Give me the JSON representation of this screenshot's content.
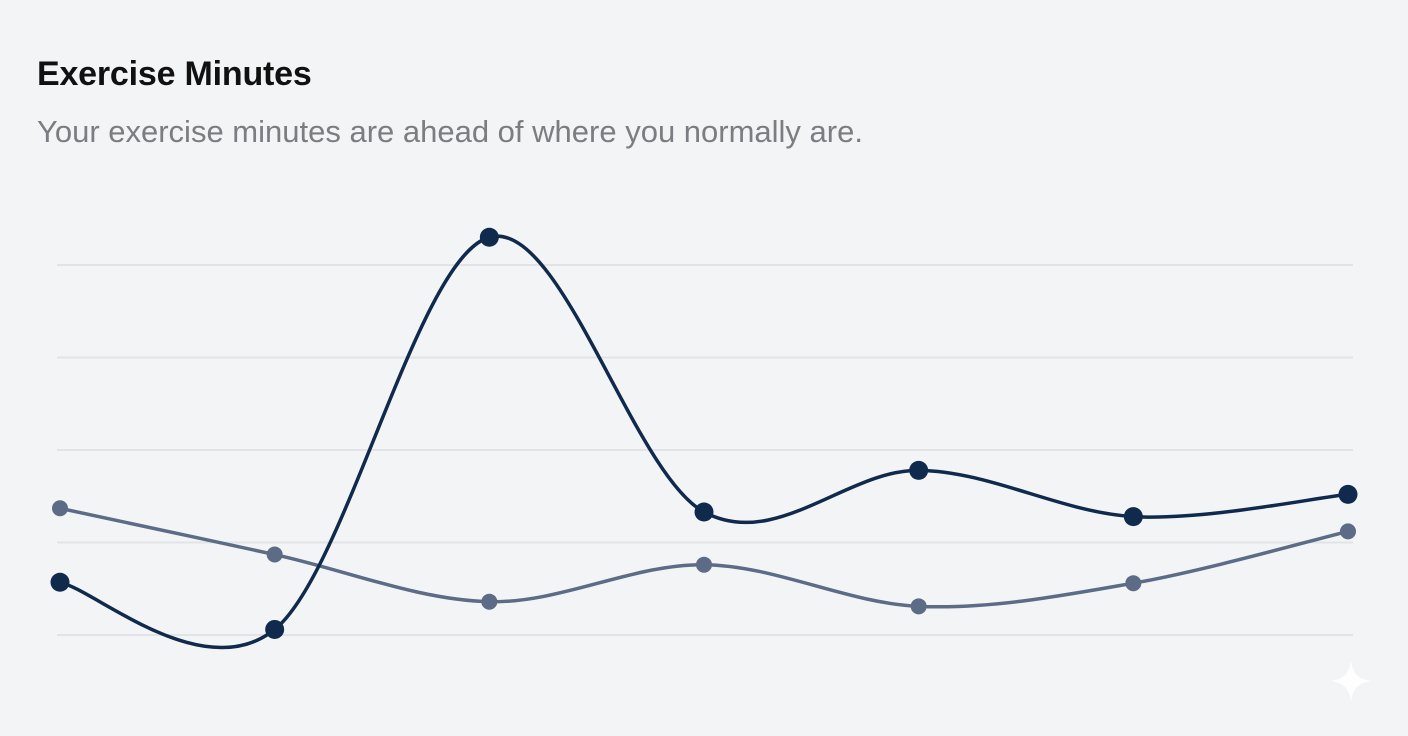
{
  "card": {
    "title": "Exercise Minutes",
    "subtitle": "Your exercise minutes are ahead of where you normally are."
  },
  "colors": {
    "background": "#f3f4f5",
    "current_series": "#0f2a4d",
    "typical_series": "#5c6b86",
    "gridline": "#e1e3e6"
  },
  "chart_data": {
    "type": "line",
    "title": "Exercise Minutes",
    "subtitle": "Your exercise minutes are ahead of where you normally are.",
    "x": [
      1,
      2,
      3,
      4,
      5,
      6,
      7
    ],
    "xlabel": "",
    "ylabel": "",
    "ylim": [
      0,
      4
    ],
    "grid": true,
    "gridlines": 5,
    "smooth": true,
    "series": [
      {
        "key": "current",
        "values": [
          0.57,
          0.06,
          4.3,
          1.33,
          1.78,
          1.28,
          1.52
        ]
      },
      {
        "key": "typical",
        "values": [
          1.37,
          0.87,
          0.36,
          0.76,
          0.31,
          0.56,
          1.12
        ]
      }
    ]
  }
}
